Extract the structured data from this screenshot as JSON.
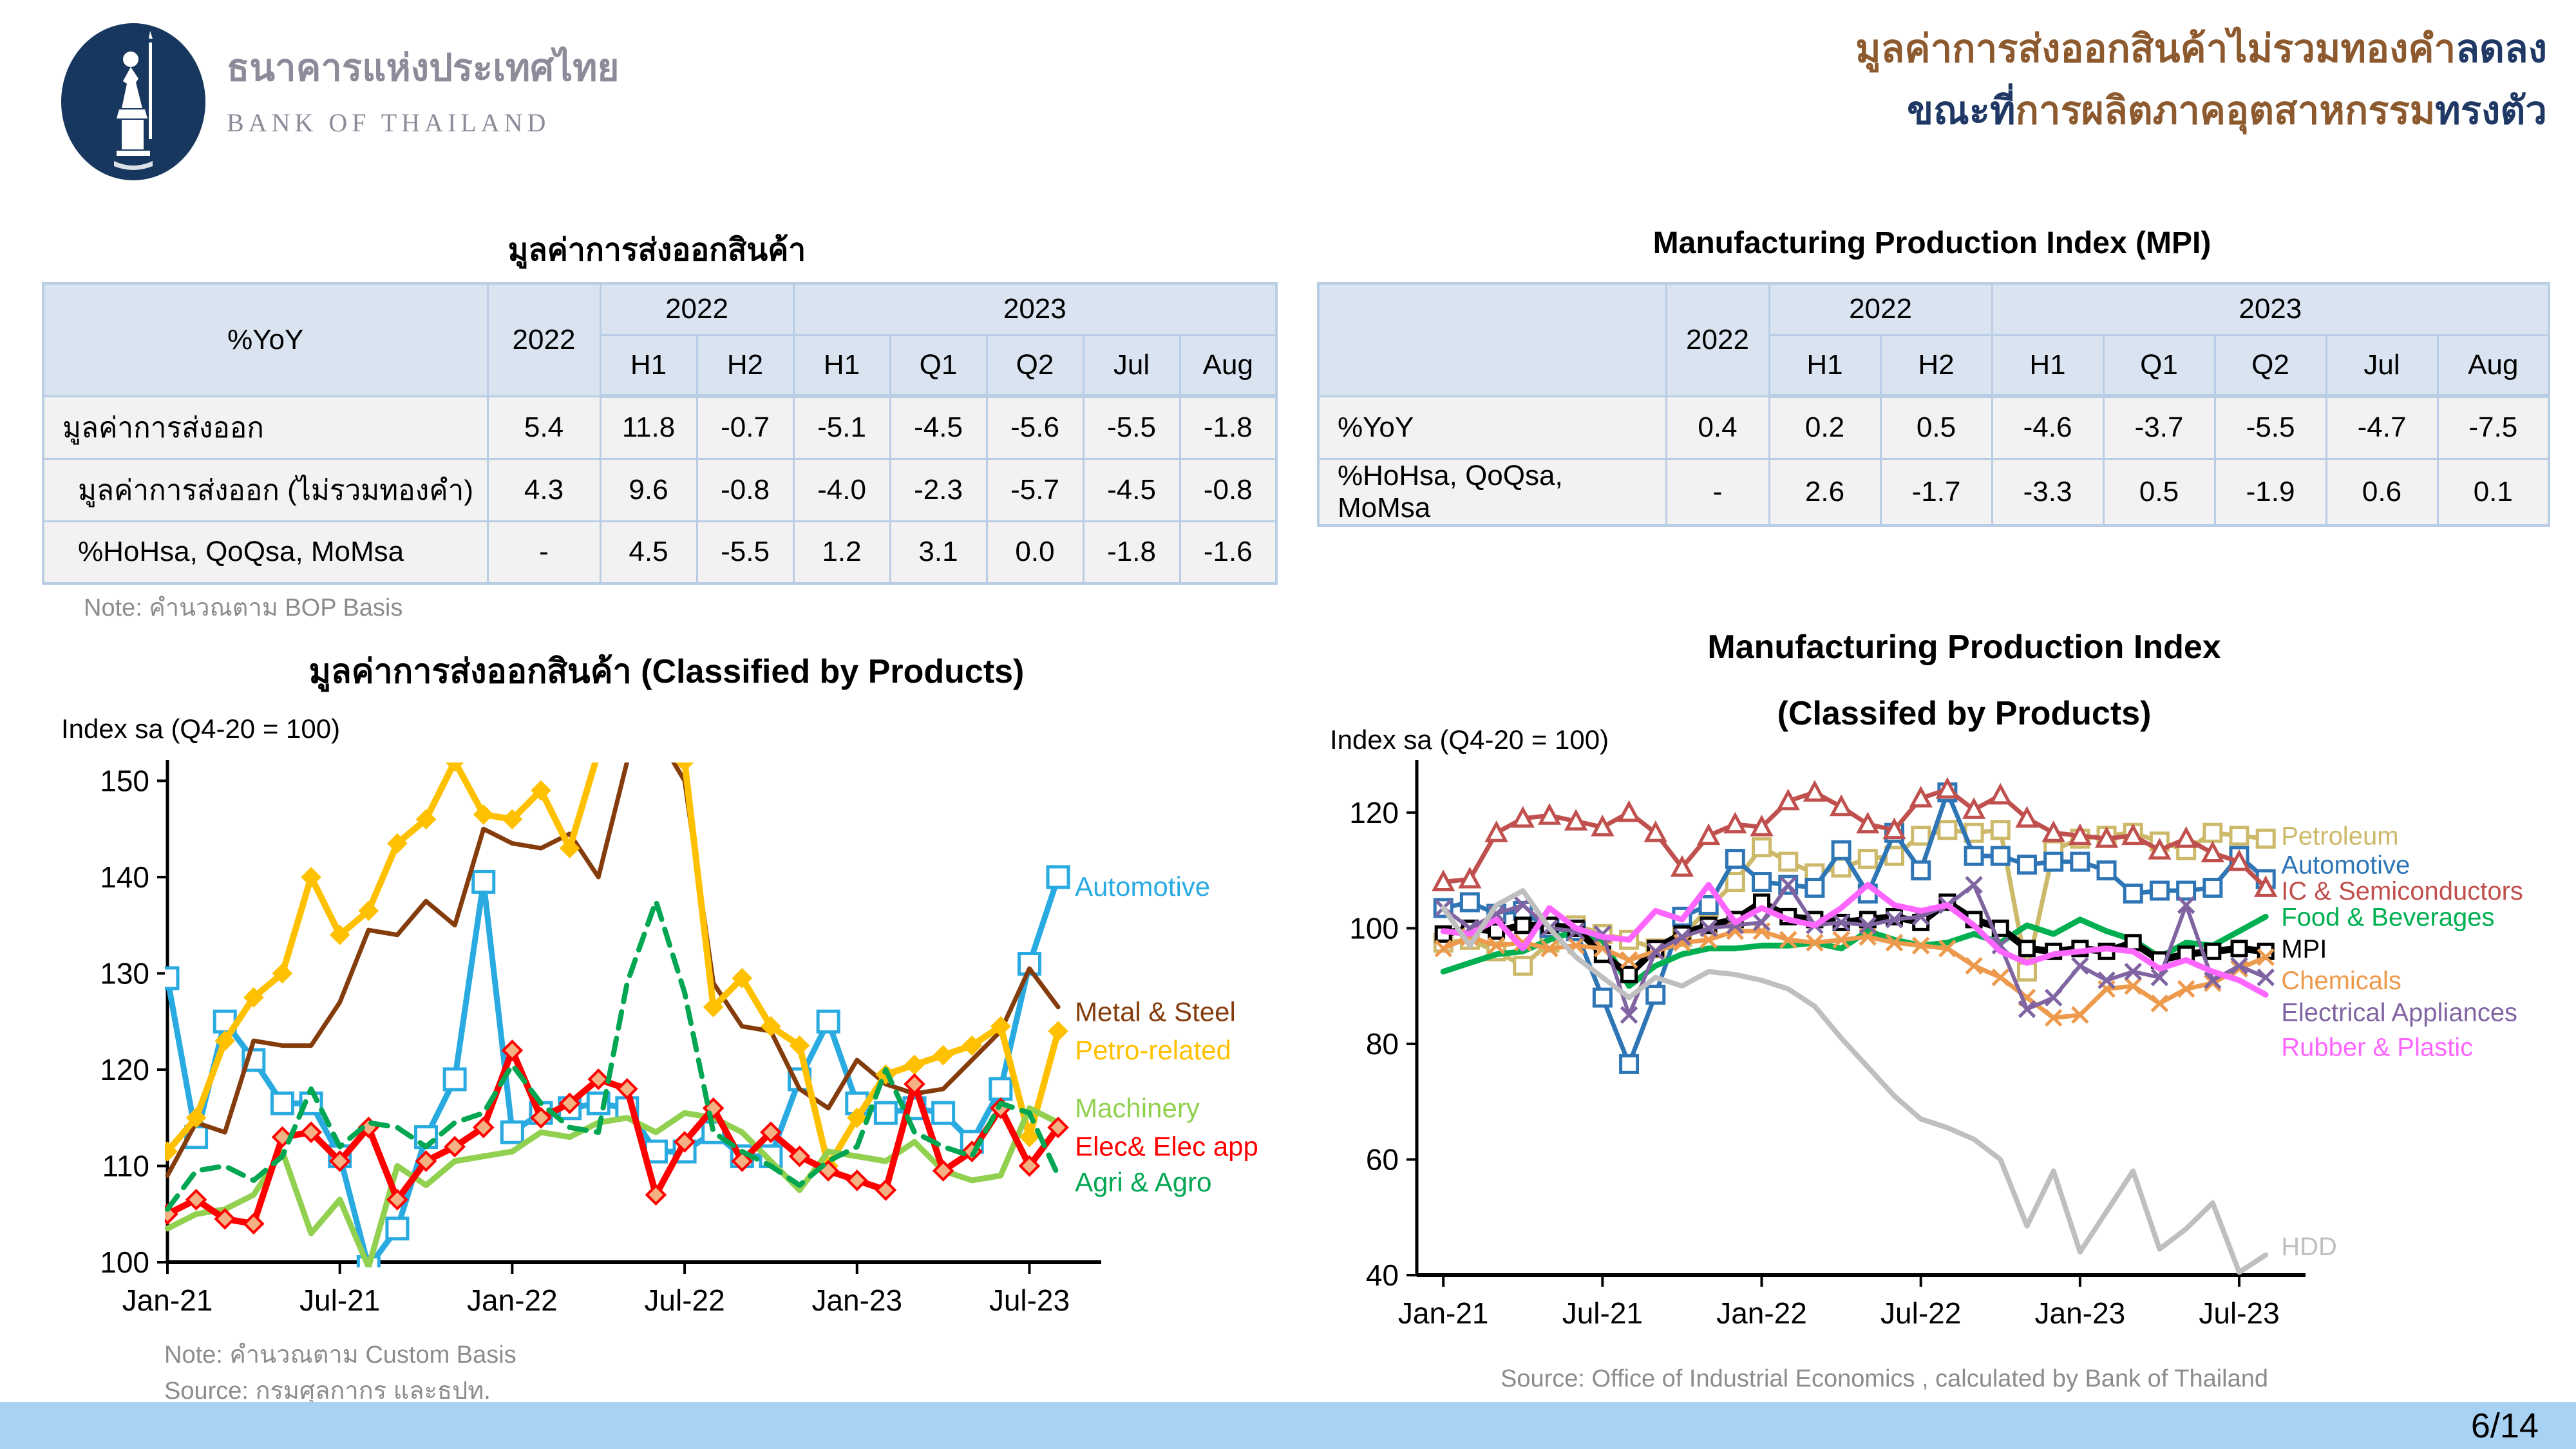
{
  "header": {
    "logo": {
      "thai_name": "ธนาคารแห่งประเทศไทย",
      "eng_name": "BANK OF THAILAND"
    },
    "title": {
      "line1": [
        {
          "text": "มูลค่าการส่งออกสินค้าไม่รวมทองคำ",
          "color": "#8C5A2E"
        },
        {
          "text": "ลดลง",
          "color": "#1F3864"
        }
      ],
      "line2": [
        {
          "text": "ขณะที่",
          "color": "#1F3864"
        },
        {
          "text": "การผลิตภาคอุตสาหกรรม",
          "color": "#8C5A2E"
        },
        {
          "text": "ทรงตัว",
          "color": "#1F3864"
        }
      ]
    }
  },
  "export_table": {
    "title": "มูลค่าการส่งออกสินค้า",
    "corner_label": "%YoY",
    "year_col": "2022",
    "groups": [
      {
        "label": "2022",
        "cols": [
          "H1",
          "H2"
        ]
      },
      {
        "label": "2023",
        "cols": [
          "H1",
          "Q1",
          "Q2",
          "Jul",
          "Aug"
        ]
      }
    ],
    "rows": [
      {
        "label": "มูลค่าการส่งออก",
        "indent": false,
        "values": [
          "5.4",
          "11.8",
          "-0.7",
          "-5.1",
          "-4.5",
          "-5.6",
          "-5.5",
          "-1.8"
        ]
      },
      {
        "label": "มูลค่าการส่งออก (ไม่รวมทองคำ)",
        "indent": true,
        "values": [
          "4.3",
          "9.6",
          "-0.8",
          "-4.0",
          "-2.3",
          "-5.7",
          "-4.5",
          "-0.8"
        ]
      },
      {
        "label": "%HoHsa, QoQsa, MoMsa",
        "indent": true,
        "values": [
          "-",
          "4.5",
          "-5.5",
          "1.2",
          "3.1",
          "0.0",
          "-1.8",
          "-1.6"
        ]
      }
    ],
    "note": "Note: คำนวณตาม BOP Basis"
  },
  "mpi_table": {
    "title": "Manufacturing Production Index (MPI)",
    "corner_label": "",
    "year_col": "2022",
    "groups": [
      {
        "label": "2022",
        "cols": [
          "H1",
          "H2"
        ]
      },
      {
        "label": "2023",
        "cols": [
          "H1",
          "Q1",
          "Q2",
          "Jul",
          "Aug"
        ]
      }
    ],
    "rows": [
      {
        "label": "%YoY",
        "indent": false,
        "values": [
          "0.4",
          "0.2",
          "0.5",
          "-4.6",
          "-3.7",
          "-5.5",
          "-4.7",
          "-7.5"
        ]
      },
      {
        "label": "%HoHsa, QoQsa, MoMsa",
        "indent": false,
        "values": [
          "-",
          "2.6",
          "-1.7",
          "-3.3",
          "0.5",
          "-1.9",
          "0.6",
          "0.1"
        ]
      }
    ]
  },
  "chart_data": [
    {
      "type": "line",
      "title": "มูลค่าการส่งออกสินค้า (Classified by Products)",
      "ylabel": "Index sa (Q4-20 = 100)",
      "note": "Note: คำนวณตาม Custom Basis",
      "source": "Source: กรมศุลกากร และธปท.",
      "ylim": [
        100,
        151.5
      ],
      "yticks": [
        100,
        110,
        120,
        130,
        140,
        150
      ],
      "x_count": 32,
      "x_tick_indices": [
        0,
        6,
        12,
        18,
        24,
        30
      ],
      "x_tick_labels": [
        "Jan-21",
        "Jul-21",
        "Jan-22",
        "Jul-22",
        "Jan-23",
        "Jul-23"
      ],
      "x_months": "monthly Jan-2021 .. Aug-2023",
      "legend_position": "right-of-lines",
      "grid": false,
      "series": [
        {
          "name": "Automotive",
          "color": "#29ABE2",
          "width": 9,
          "marker": "square",
          "msize": 16,
          "label_y": 139,
          "values": [
            129.5,
            113,
            125,
            121,
            116.5,
            116.5,
            111,
            99.5,
            103.5,
            113,
            119,
            139.5,
            113.5,
            115.5,
            116,
            116.5,
            116,
            111.5,
            111.5,
            113.5,
            111,
            111,
            119,
            125,
            116.5,
            115.5,
            116,
            115.5,
            112.5,
            118,
            131,
            140
          ]
        },
        {
          "name": "Metal & Steel",
          "color": "#843C0C",
          "width": 7,
          "marker": "none",
          "msize": 0,
          "label_y": 126,
          "values": [
            109,
            114.5,
            113.5,
            123,
            122.5,
            122.5,
            127,
            134.5,
            134,
            137.5,
            135,
            145,
            143.5,
            143,
            144.5,
            140,
            152,
            155,
            150,
            129,
            124.5,
            124,
            118,
            116,
            121,
            118.5,
            117.5,
            118,
            121,
            124,
            130.5,
            126.5
          ]
        },
        {
          "name": "Petro-related",
          "color": "#FFC000",
          "width": 10,
          "marker": "diamond",
          "marker_fill": "#FFC000",
          "msize": 13,
          "label_y": 122,
          "values": [
            111.5,
            115,
            123,
            127.5,
            130,
            140,
            134,
            136.5,
            143.5,
            146,
            152,
            146.5,
            146,
            149,
            143,
            153,
            158,
            154,
            152,
            126.5,
            129.5,
            124.5,
            122.5,
            110,
            115,
            119.5,
            120.5,
            121.5,
            122.5,
            124.5,
            113,
            124
          ]
        },
        {
          "name": "Machinery",
          "color": "#92D050",
          "width": 9,
          "marker": "none",
          "msize": 0,
          "label_y": 116,
          "values": [
            103.5,
            105,
            105.5,
            107,
            111.5,
            103,
            106.5,
            99.5,
            110,
            108,
            110.5,
            111,
            111.5,
            113.5,
            113,
            114.5,
            115,
            113.5,
            115.5,
            115,
            113.5,
            110.5,
            107.5,
            111.5,
            111,
            110.5,
            112.5,
            109.5,
            108.5,
            109,
            116,
            114.5
          ]
        },
        {
          "name": "Elec& Elec app",
          "color": "#FF0000",
          "width": 10,
          "marker": "diamond",
          "marker_fill": "#F4B183",
          "msize": 14,
          "label_y": 112,
          "values": [
            105,
            106.5,
            104.5,
            104,
            113,
            113.5,
            110.5,
            114,
            106.5,
            110.5,
            112,
            114,
            122,
            115,
            116.5,
            119,
            118,
            107,
            112.5,
            116,
            110.5,
            113.5,
            111,
            109.5,
            108.5,
            107.5,
            118.5,
            109.5,
            111.5,
            116,
            110,
            114
          ]
        },
        {
          "name": "Agri & Agro",
          "color": "#00A651",
          "width": 8,
          "dash": "26 16",
          "marker": "none",
          "msize": 0,
          "label_y": 108.3,
          "values": [
            105.5,
            109.5,
            110,
            108.5,
            111,
            118,
            112,
            114.5,
            114,
            112,
            114.5,
            115.5,
            120.5,
            116.5,
            114,
            113.5,
            129,
            137.5,
            128,
            113.5,
            111.5,
            110,
            108,
            110.5,
            112,
            120,
            113.5,
            112,
            111,
            116.5,
            115.5,
            109
          ]
        }
      ]
    },
    {
      "type": "line",
      "title_line1": "Manufacturing Production Index",
      "title_line2": "(Classifed by Products)",
      "ylabel": "Index sa (Q4-20 = 100)",
      "source": "Source: Office of Industrial Economics , calculated by Bank of Thailand",
      "ylim": [
        40,
        128
      ],
      "yticks": [
        40,
        60,
        80,
        100,
        120
      ],
      "x_count": 32,
      "x_tick_indices": [
        0,
        6,
        12,
        18,
        24,
        30
      ],
      "x_tick_labels": [
        "Jan-21",
        "Jul-21",
        "Jan-22",
        "Jul-22",
        "Jan-23",
        "Jul-23"
      ],
      "x_months": "monthly Jan-2021 .. Aug-2023",
      "legend_position": "right-of-lines",
      "grid": false,
      "series": [
        {
          "name": "Petroleum",
          "color": "#CDB96A",
          "width": 7,
          "marker": "square",
          "msize": 13,
          "label_y": 116,
          "values": [
            97.5,
            98,
            96,
            93.5,
            97.5,
            100.5,
            99,
            98,
            96.5,
            98.5,
            103.5,
            108,
            114,
            111.5,
            109.5,
            110.5,
            112,
            112.5,
            116,
            117,
            116.5,
            117,
            92.5,
            113.5,
            115.5,
            116,
            116.5,
            115,
            113.5,
            116.5,
            116,
            115.5
          ]
        },
        {
          "name": "Automotive",
          "color": "#2E75B6",
          "width": 7,
          "marker": "square",
          "msize": 13,
          "label_y": 111,
          "values": [
            103.5,
            104.5,
            102.5,
            103,
            100,
            99.5,
            88,
            76.5,
            88.5,
            102,
            104,
            112,
            108,
            107.5,
            107,
            113.5,
            106,
            116.5,
            110,
            123.5,
            112.5,
            112.5,
            111,
            111.5,
            111.5,
            110,
            106,
            106.5,
            106.5,
            107,
            112.5,
            108.5
          ]
        },
        {
          "name": "IC & Semiconductors",
          "color": "#C0504D",
          "width": 7,
          "marker": "triangle",
          "msize": 14,
          "label_y": 106.5,
          "values": [
            108,
            108.5,
            116.5,
            119,
            119.5,
            118.5,
            117.5,
            120,
            116.5,
            110.5,
            116,
            118,
            117.5,
            122,
            123.5,
            121,
            118,
            117,
            122.5,
            124,
            120.5,
            123,
            119,
            116.5,
            116,
            115.5,
            116,
            113.5,
            115.5,
            113,
            111.5,
            107
          ]
        },
        {
          "name": "Food & Beverages",
          "color": "#00B050",
          "width": 9,
          "marker": "none",
          "msize": 0,
          "label_y": 102,
          "values": [
            92.5,
            94,
            95.5,
            96,
            98,
            99.5,
            98,
            90,
            93.5,
            95.5,
            96.5,
            96.5,
            97,
            97,
            97.5,
            96.5,
            99.5,
            98,
            97,
            97.5,
            99,
            97.5,
            100.5,
            99,
            101.5,
            99.5,
            98,
            95,
            97.5,
            97,
            99.5,
            102
          ]
        },
        {
          "name": "MPI",
          "color": "#000000",
          "width": 11,
          "marker": "square",
          "msize": 11,
          "label_y": 96.5,
          "values": [
            99,
            100,
            99.5,
            100.5,
            100.5,
            100,
            95.5,
            92,
            96.5,
            99,
            100.5,
            101.5,
            104.5,
            102,
            101.5,
            101,
            101.5,
            102,
            101,
            104.5,
            101.5,
            100,
            96.5,
            96,
            96.5,
            96,
            97.5,
            94.5,
            95.5,
            96,
            96.5,
            96
          ]
        },
        {
          "name": "Chemicals",
          "color": "#ED9A4D",
          "width": 7,
          "marker": "x",
          "msize": 12,
          "label_y": 91,
          "values": [
            96.5,
            98.5,
            97,
            97.5,
            96.5,
            97,
            96.5,
            94.5,
            96,
            97.5,
            98,
            99.5,
            99.5,
            98,
            97.5,
            98,
            98.5,
            97.5,
            97,
            96.5,
            93.5,
            91.5,
            88,
            84.5,
            85,
            89.5,
            90,
            87,
            89.5,
            90.5,
            93,
            95
          ]
        },
        {
          "name": "Electrical Appliances",
          "color": "#8064A2",
          "width": 6,
          "marker": "x",
          "msize": 12,
          "label_y": 85.5,
          "values": [
            103.5,
            100,
            102.5,
            104,
            100,
            99.5,
            99,
            85,
            96,
            98.5,
            100,
            100.5,
            101,
            107.5,
            100.5,
            101,
            100.5,
            101.5,
            102,
            104,
            107.5,
            97,
            86,
            88,
            93.5,
            91,
            92.5,
            91.5,
            104,
            91,
            93.5,
            91.5
          ]
        },
        {
          "name": "Rubber & Plastic",
          "color": "#FF66FF",
          "width": 9,
          "marker": "none",
          "msize": 0,
          "label_y": 79.5,
          "values": [
            99.5,
            99,
            101.5,
            96.5,
            103.5,
            100,
            98.5,
            98,
            103,
            101.5,
            107.5,
            101,
            103.5,
            101.5,
            100.5,
            103.5,
            107.5,
            104,
            103,
            104,
            100.5,
            96,
            94,
            95.5,
            96,
            96.5,
            96,
            93,
            94.5,
            92.5,
            91,
            88.5
          ]
        },
        {
          "name": "HDD",
          "color": "#BFBFBF",
          "width": 8,
          "marker": "none",
          "msize": 0,
          "label_y": 45,
          "values": [
            103.5,
            97,
            104,
            106.5,
            100,
            95,
            91.5,
            88,
            91.5,
            90,
            92.5,
            92,
            91,
            89.5,
            86.5,
            81,
            76,
            71,
            67,
            65.5,
            63.5,
            60,
            48.5,
            58,
            44,
            51,
            58,
            44.5,
            48,
            52.5,
            40.5,
            43.5
          ]
        }
      ]
    }
  ],
  "footer": {
    "page_number": "6/14",
    "bar_color": "#A7D2F4"
  },
  "accent_colors": {
    "title_brown": "#8C5A2E",
    "title_navy": "#1F3864",
    "logo_navy": "#17375E",
    "table_header": "#DAE4F1",
    "table_border": "#B9CDE5"
  }
}
